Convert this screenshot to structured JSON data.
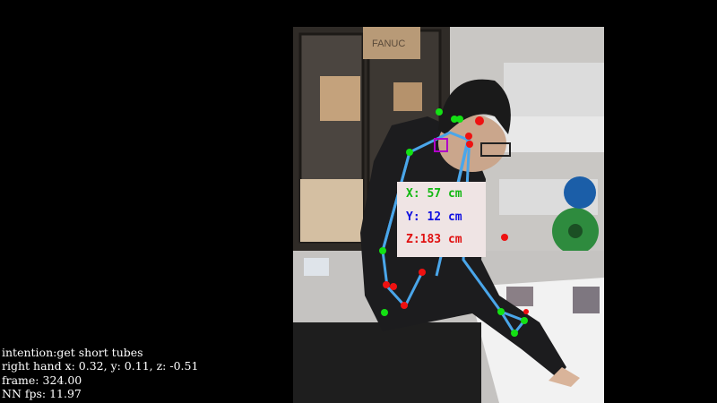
{
  "overlay": {
    "intention": "intention:get short tubes",
    "hand": "right hand x: 0.32, y: 0.11, z: -0.51",
    "frame": "frame: 324.00",
    "fps": "NN fps: 11.97"
  },
  "position_box": {
    "x_text": "X: 57 cm",
    "y_text": "Y: 12 cm",
    "z_text": "Z:183 cm",
    "x_color": "#12b812",
    "y_color": "#1010e0",
    "z_color": "#e01010"
  },
  "scene": {
    "box_label": "FANUC"
  },
  "colors": {
    "skeleton": "#4aa6ea",
    "left_keypoint": "#14e014",
    "right_keypoint": "#ee1111",
    "head_marker": "#b000c8"
  }
}
